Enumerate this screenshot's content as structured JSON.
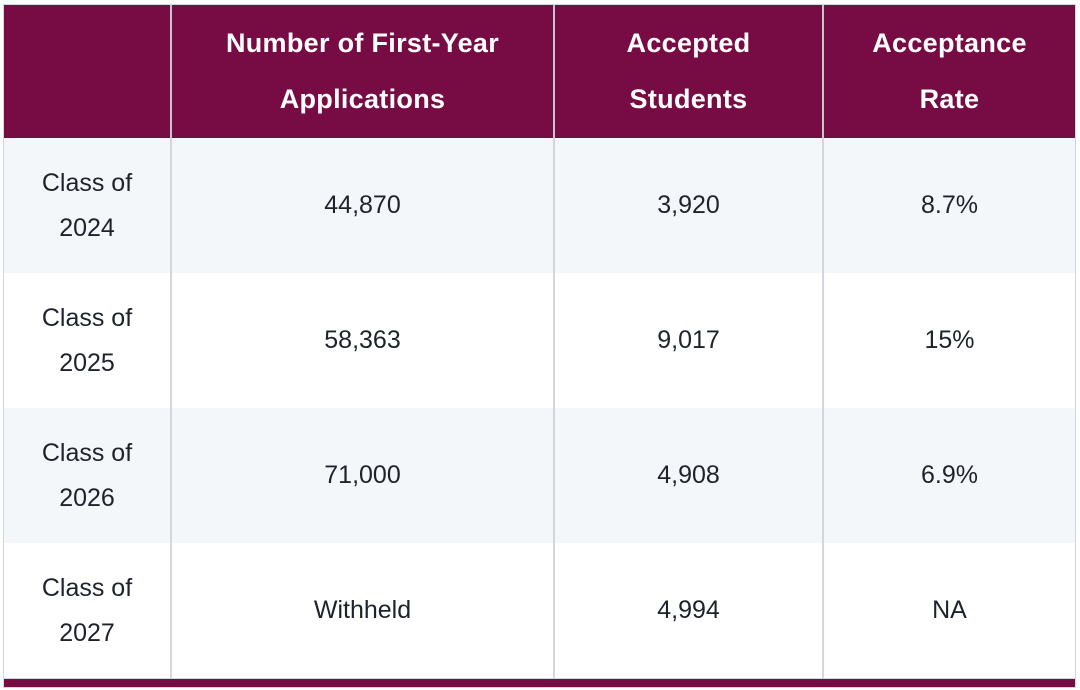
{
  "chart_data": {
    "type": "table",
    "columns": [
      "",
      "Number of First-Year Applications",
      "Accepted Students",
      "Acceptance Rate"
    ],
    "rows": [
      [
        "Class of 2024",
        "44,870",
        "3,920",
        "8.7%"
      ],
      [
        "Class of 2025",
        "58,363",
        "9,017",
        "15%"
      ],
      [
        "Class of 2026",
        "71,000",
        "4,908",
        "6.9%"
      ],
      [
        "Class of 2027",
        "Withheld",
        "4,994",
        "NA"
      ]
    ],
    "layout": {
      "header_position": "top",
      "first_column_is_row_label": true,
      "zebra_striping": true,
      "all_cells_centered": true
    }
  },
  "colors": {
    "header_bg": "#770C45",
    "header_text": "#FFFFFF",
    "row_alt_bg": "#F4F7FA",
    "row_bg": "#FFFFFF",
    "body_text": "#1E222A",
    "divider": "#D3D6DE",
    "bottom_border": "#770C45"
  }
}
